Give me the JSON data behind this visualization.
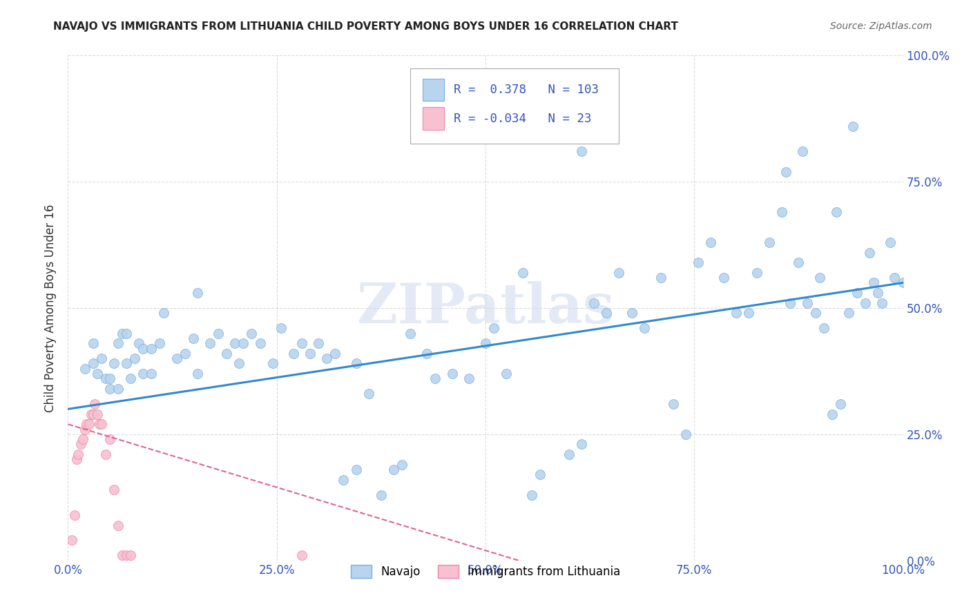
{
  "title": "NAVAJO VS IMMIGRANTS FROM LITHUANIA CHILD POVERTY AMONG BOYS UNDER 16 CORRELATION CHART",
  "source": "Source: ZipAtlas.com",
  "ylabel": "Child Poverty Among Boys Under 16",
  "watermark": "ZIPatlas",
  "navajo_R": 0.378,
  "navajo_N": 103,
  "lithuania_R": -0.034,
  "lithuania_N": 23,
  "navajo_color": "#b8d4ee",
  "navajo_edge_color": "#7aaedd",
  "lithuania_color": "#f8c0d0",
  "lithuania_edge_color": "#e888a8",
  "trend_navajo_color": "#3388cc",
  "trend_lithuania_color": "#dd6688",
  "navajo_x": [
    0.02,
    0.03,
    0.03,
    0.035,
    0.04,
    0.045,
    0.05,
    0.05,
    0.055,
    0.06,
    0.06,
    0.065,
    0.07,
    0.07,
    0.075,
    0.08,
    0.085,
    0.09,
    0.09,
    0.1,
    0.1,
    0.11,
    0.115,
    0.13,
    0.14,
    0.15,
    0.155,
    0.17,
    0.18,
    0.19,
    0.2,
    0.205,
    0.21,
    0.22,
    0.23,
    0.245,
    0.255,
    0.27,
    0.28,
    0.29,
    0.3,
    0.31,
    0.32,
    0.33,
    0.345,
    0.36,
    0.375,
    0.39,
    0.4,
    0.41,
    0.43,
    0.44,
    0.46,
    0.48,
    0.5,
    0.51,
    0.525,
    0.545,
    0.555,
    0.565,
    0.6,
    0.615,
    0.63,
    0.645,
    0.66,
    0.675,
    0.69,
    0.71,
    0.725,
    0.74,
    0.755,
    0.77,
    0.785,
    0.8,
    0.815,
    0.825,
    0.84,
    0.855,
    0.865,
    0.875,
    0.885,
    0.895,
    0.905,
    0.915,
    0.925,
    0.935,
    0.945,
    0.955,
    0.965,
    0.97,
    0.975,
    0.985,
    0.99,
    1.0,
    0.86,
    0.88,
    0.9,
    0.92,
    0.94,
    0.96,
    0.615,
    0.155,
    0.345
  ],
  "navajo_y": [
    0.38,
    0.43,
    0.39,
    0.37,
    0.4,
    0.36,
    0.34,
    0.36,
    0.39,
    0.34,
    0.43,
    0.45,
    0.39,
    0.45,
    0.36,
    0.4,
    0.43,
    0.37,
    0.42,
    0.37,
    0.42,
    0.43,
    0.49,
    0.4,
    0.41,
    0.44,
    0.37,
    0.43,
    0.45,
    0.41,
    0.43,
    0.39,
    0.43,
    0.45,
    0.43,
    0.39,
    0.46,
    0.41,
    0.43,
    0.41,
    0.43,
    0.4,
    0.41,
    0.16,
    0.18,
    0.33,
    0.13,
    0.18,
    0.19,
    0.45,
    0.41,
    0.36,
    0.37,
    0.36,
    0.43,
    0.46,
    0.37,
    0.57,
    0.13,
    0.17,
    0.21,
    0.23,
    0.51,
    0.49,
    0.57,
    0.49,
    0.46,
    0.56,
    0.31,
    0.25,
    0.59,
    0.63,
    0.56,
    0.49,
    0.49,
    0.57,
    0.63,
    0.69,
    0.51,
    0.59,
    0.51,
    0.49,
    0.46,
    0.29,
    0.31,
    0.49,
    0.53,
    0.51,
    0.55,
    0.53,
    0.51,
    0.63,
    0.56,
    0.55,
    0.77,
    0.81,
    0.56,
    0.69,
    0.86,
    0.61,
    0.81,
    0.53,
    0.39
  ],
  "lithuania_x": [
    0.005,
    0.008,
    0.01,
    0.012,
    0.015,
    0.018,
    0.02,
    0.022,
    0.025,
    0.028,
    0.03,
    0.032,
    0.035,
    0.038,
    0.04,
    0.045,
    0.05,
    0.055,
    0.06,
    0.065,
    0.07,
    0.075,
    0.28
  ],
  "lithuania_y": [
    0.04,
    0.09,
    0.2,
    0.21,
    0.23,
    0.24,
    0.26,
    0.27,
    0.27,
    0.29,
    0.29,
    0.31,
    0.29,
    0.27,
    0.27,
    0.21,
    0.24,
    0.14,
    0.07,
    0.01,
    0.01,
    0.01,
    0.01
  ],
  "xlim": [
    0.0,
    1.0
  ],
  "ylim": [
    0.0,
    1.0
  ],
  "xticks": [
    0.0,
    0.25,
    0.5,
    0.75,
    1.0
  ],
  "yticks": [
    0.0,
    0.25,
    0.5,
    0.75,
    1.0
  ],
  "xticklabels": [
    "0.0%",
    "25.0%",
    "50.0%",
    "75.0%",
    "100.0%"
  ],
  "right_yticklabels": [
    "0.0%",
    "25.0%",
    "50.0%",
    "75.0%",
    "100.0%"
  ],
  "background_color": "#ffffff",
  "grid_color": "#cccccc",
  "title_color": "#222222",
  "axis_color": "#3355bb",
  "marker_size": 100
}
